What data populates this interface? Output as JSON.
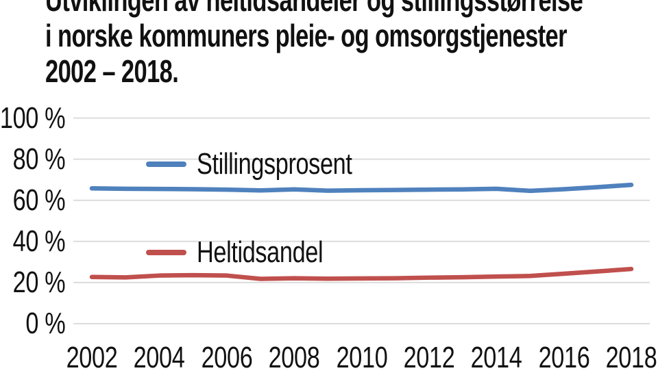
{
  "chart_data": {
    "type": "line",
    "title": "Utviklingen av heltidsandeler og stillingsstørrelse i norske kommuners pleie- og omsorgstjenester 2002 – 2018.",
    "title_lines": [
      "Utviklingen av heltidsandeler og stillingsstørrelse",
      "i norske kommuners pleie- og omsorgstjenester",
      "2002 – 2018."
    ],
    "x": [
      2002,
      2003,
      2004,
      2005,
      2006,
      2007,
      2008,
      2009,
      2010,
      2011,
      2012,
      2013,
      2014,
      2015,
      2016,
      2017,
      2018
    ],
    "series": [
      {
        "name": "Stillingsprosent",
        "color": "#4f81bd",
        "values": [
          65.8,
          65.6,
          65.5,
          65.4,
          65.2,
          64.8,
          65.3,
          64.7,
          64.9,
          65.0,
          65.2,
          65.3,
          65.6,
          64.6,
          65.4,
          66.4,
          67.5
        ]
      },
      {
        "name": "Heltidsandel",
        "color": "#c0504d",
        "values": [
          22.7,
          22.5,
          23.4,
          23.6,
          23.4,
          21.8,
          22.1,
          21.9,
          22.0,
          22.1,
          22.4,
          22.6,
          22.9,
          23.2,
          24.3,
          25.4,
          26.6
        ]
      }
    ],
    "xlabel": "",
    "ylabel": "",
    "ylim": [
      0,
      100
    ],
    "y_ticks": [
      0,
      20,
      40,
      60,
      80,
      100
    ],
    "y_tick_labels": [
      "0 %",
      "20 %",
      "40 %",
      "60 %",
      "80 %",
      "100 %"
    ],
    "x_tick_labels": [
      "2002",
      "2004",
      "2006",
      "2008",
      "2010",
      "2012",
      "2014",
      "2016",
      "2018"
    ],
    "grid": "horizontal",
    "gridline_color": "#dcdcdc",
    "legend_position": "inside-left",
    "background": "#ffffff",
    "text_color": "#111111",
    "line_width": 6.5
  }
}
